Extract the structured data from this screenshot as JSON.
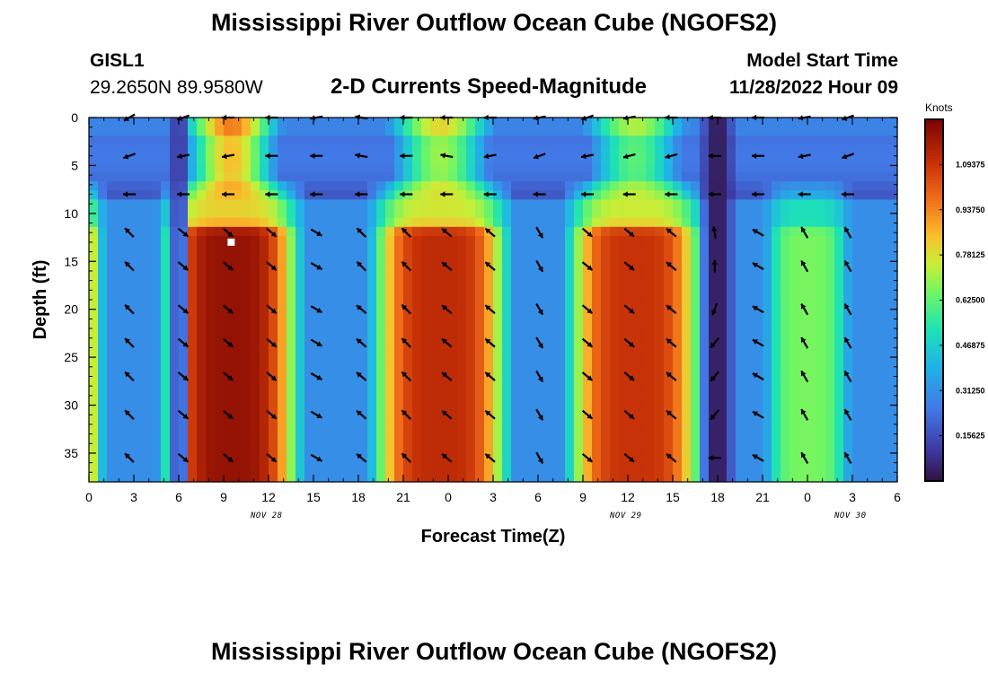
{
  "header": {
    "title": "Mississippi River Outflow Ocean Cube (NGOFS2)",
    "station_id": "GISL1",
    "station_coords": "29.2650N  89.9580W",
    "subtitle": "2-D Currents Speed-Magnitude",
    "model_start_label": "Model Start Time",
    "model_start_value": "11/28/2022 Hour 09"
  },
  "chart_data": {
    "type": "heatmap",
    "title": "2-D Currents Speed-Magnitude",
    "xlabel": "Forecast Time(Z)",
    "ylabel": "Depth (ft)",
    "xlim": [
      0,
      54
    ],
    "ylim": [
      0,
      38
    ],
    "x_tick_hours": [
      0,
      3,
      6,
      9,
      12,
      15,
      18,
      21,
      24,
      27,
      30,
      33,
      36,
      39,
      42,
      45,
      48,
      51,
      54
    ],
    "x_tick_labels": [
      "0",
      "3",
      "6",
      "9",
      "12",
      "15",
      "18",
      "21",
      "0",
      "3",
      "6",
      "9",
      "12",
      "15",
      "18",
      "21",
      "0",
      "3",
      "6"
    ],
    "y_ticks": [
      0,
      5,
      10,
      15,
      20,
      25,
      30,
      35
    ],
    "y_tick_labels": [
      "0",
      "5",
      "10",
      "15",
      "20",
      "25",
      "30",
      "35"
    ],
    "date_labels": [
      {
        "hour": 12,
        "label": "NOV 28"
      },
      {
        "hour": 36,
        "label": "NOV 29"
      },
      {
        "hour": 51,
        "label": "NOV 30"
      }
    ],
    "colorbar": {
      "unit": "Knots",
      "min": 0,
      "max": 1.25,
      "tick_values": [
        0.15625,
        0.3125,
        0.46875,
        0.625,
        0.78125,
        0.9375,
        1.09375
      ],
      "tick_labels": [
        "0.15625",
        "0.31250",
        "0.46875",
        "0.62500",
        "0.78125",
        "0.93750",
        "1.09375"
      ]
    },
    "marker": {
      "hour": 9.5,
      "depth": 13
    },
    "speed_model": {
      "deep_pulses": [
        {
          "center": -1,
          "halfwidth": 2,
          "peak": 0.88
        },
        {
          "center": 9.5,
          "halfwidth": 4.5,
          "peak": 1.2
        },
        {
          "center": 23.5,
          "halfwidth": 4.5,
          "peak": 1.12
        },
        {
          "center": 36.5,
          "halfwidth": 4.5,
          "peak": 1.1
        },
        {
          "center": 48,
          "halfwidth": 3,
          "peak": 0.66
        }
      ],
      "surface_pulses": [
        {
          "center": 9.5,
          "halfwidth": 3.5,
          "peak": 0.95
        },
        {
          "center": 23.5,
          "halfwidth": 4,
          "peak": 0.8
        },
        {
          "center": 36.5,
          "halfwidth": 4,
          "peak": 0.72
        }
      ],
      "low_bands": [
        {
          "center": 6,
          "halfwidth": 0.8,
          "value": 0.12
        },
        {
          "center": 42,
          "halfwidth": 1.2,
          "value": 0.03
        }
      ],
      "base_speed": 0.28
    },
    "vector_depths": [
      0,
      4,
      8,
      12,
      15.5,
      20,
      23.5,
      27,
      31,
      35.5
    ],
    "vector_hours": [
      2.7,
      6.3,
      9.3,
      12.2,
      15.2,
      18.2,
      21.2,
      23.9,
      26.8,
      30.1,
      33.3,
      36.1,
      38.9,
      41.8,
      44.7,
      47.8,
      50.7
    ],
    "vector_directions_deg": [
      [
        210,
        200,
        180,
        180,
        190,
        170,
        180,
        180,
        180,
        190,
        200,
        190,
        180,
        180,
        180,
        190,
        200
      ],
      [
        200,
        190,
        190,
        180,
        180,
        170,
        180,
        170,
        190,
        200,
        190,
        195,
        195,
        180,
        180,
        190,
        200
      ],
      [
        180,
        180,
        180,
        180,
        180,
        180,
        180,
        180,
        180,
        180,
        180,
        180,
        180,
        180,
        180,
        180,
        180
      ],
      [
        135,
        320,
        320,
        320,
        330,
        135,
        135,
        140,
        140,
        300,
        320,
        320,
        140,
        100,
        150,
        120,
        120
      ],
      [
        135,
        320,
        320,
        320,
        330,
        135,
        135,
        140,
        140,
        300,
        320,
        320,
        140,
        90,
        150,
        120,
        120
      ],
      [
        135,
        320,
        320,
        320,
        330,
        140,
        135,
        140,
        140,
        300,
        320,
        320,
        140,
        250,
        150,
        120,
        120
      ],
      [
        135,
        320,
        320,
        320,
        330,
        140,
        135,
        140,
        140,
        300,
        320,
        320,
        140,
        230,
        150,
        120,
        120
      ],
      [
        135,
        320,
        320,
        320,
        330,
        140,
        135,
        140,
        140,
        300,
        320,
        320,
        140,
        230,
        150,
        120,
        120
      ],
      [
        135,
        320,
        320,
        320,
        330,
        140,
        135,
        140,
        140,
        300,
        320,
        320,
        140,
        230,
        150,
        120,
        120
      ],
      [
        135,
        320,
        320,
        320,
        330,
        140,
        135,
        140,
        140,
        300,
        320,
        320,
        140,
        180,
        150,
        120,
        120
      ]
    ]
  },
  "footer": {
    "title_repeat": "Mississippi River Outflow Ocean Cube (NGOFS2)"
  }
}
